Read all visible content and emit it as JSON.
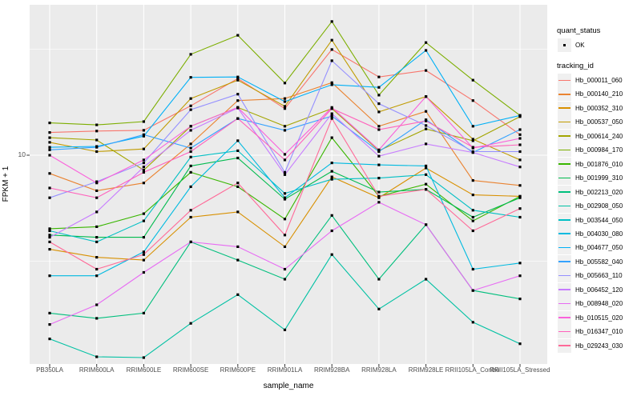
{
  "colors": {
    "panel_bg": "#EBEBEB",
    "grid": "#FFFFFF",
    "axis_text": "#4D4D4D",
    "tick_mark": "#333333",
    "marker": "#000000",
    "legend_key_bg": "#F0F0F0"
  },
  "y_axis": {
    "tick_label": "10"
  },
  "legend": {
    "quant_status_title": "quant_status",
    "quant_status_items": [
      {
        "label": "OK",
        "symbol": "black-point"
      }
    ],
    "tracking_id_title": "tracking_id"
  },
  "chart_data": {
    "type": "line",
    "title": "",
    "xlabel": "sample_name",
    "ylabel": "FPKM + 1",
    "yscale": "log10",
    "ylim": [
      1.03,
      51
    ],
    "ybreaks_major": [
      10
    ],
    "ybreaks_minor": [
      3.16,
      31.6
    ],
    "grid": "on",
    "legend_position": "right",
    "quant_status": "OK",
    "x_categories": [
      "PB350LA",
      "RRIM600LA",
      "RRIM600LE",
      "RRIM600SE",
      "RRIM600PE",
      "RRIM901LA",
      "RRIM928BA",
      "RRIM928LA",
      "RRIM928LE",
      "RRII105LA_Control",
      "RRII105LA_Stressed"
    ],
    "series": [
      {
        "name": "Hb_000011_060",
        "color": "#F8766D",
        "values": [
          12.8,
          13.0,
          13.1,
          17.1,
          23.0,
          16.6,
          31.5,
          23.4,
          25.1,
          18.1,
          12.5
        ]
      },
      {
        "name": "Hb_000140_210",
        "color": "#EA8331",
        "values": [
          8.2,
          6.8,
          7.4,
          11.3,
          18.1,
          18.5,
          22.0,
          13.7,
          16.1,
          7.6,
          7.2
        ]
      },
      {
        "name": "Hb_000352_310",
        "color": "#D89000",
        "values": [
          3.6,
          3.3,
          3.2,
          5.1,
          5.4,
          3.7,
          7.9,
          6.3,
          8.7,
          6.5,
          6.4
        ]
      },
      {
        "name": "Hb_000537_050",
        "color": "#C09B00",
        "values": [
          11.5,
          10.4,
          10.7,
          18.5,
          22.6,
          17.0,
          34.9,
          16.0,
          18.9,
          11.9,
          9.5
        ]
      },
      {
        "name": "Hb_000614_240",
        "color": "#A3A500",
        "values": [
          12.1,
          11.8,
          8.5,
          13.7,
          16.8,
          13.7,
          16.6,
          10.5,
          13.3,
          11.7,
          15.2
        ]
      },
      {
        "name": "Hb_000984_170",
        "color": "#7CAE00",
        "values": [
          14.2,
          13.9,
          14.4,
          29.9,
          36.8,
          21.9,
          42.7,
          19.2,
          34.0,
          22.6,
          15.4
        ]
      },
      {
        "name": "Hb_001876_010",
        "color": "#39B600",
        "values": [
          4.5,
          4.6,
          5.3,
          8.3,
          7.1,
          5.0,
          12.1,
          6.4,
          7.3,
          4.9,
          6.4
        ]
      },
      {
        "name": "Hb_001999_310",
        "color": "#00BB4E",
        "values": [
          4.2,
          4.1,
          4.1,
          8.9,
          9.7,
          6.2,
          8.4,
          6.7,
          6.9,
          5.1,
          6.3
        ]
      },
      {
        "name": "Hb_002213_020",
        "color": "#00BF7D",
        "values": [
          1.8,
          1.7,
          1.8,
          3.9,
          3.2,
          2.6,
          5.2,
          2.6,
          4.7,
          2.3,
          2.1
        ]
      },
      {
        "name": "Hb_002908_050",
        "color": "#00C1A3",
        "values": [
          1.36,
          1.12,
          1.11,
          1.61,
          2.2,
          1.5,
          3.4,
          1.88,
          2.6,
          1.63,
          1.29
        ]
      },
      {
        "name": "Hb_003544_050",
        "color": "#00BFC4",
        "values": [
          4.4,
          3.9,
          4.9,
          9.8,
          10.5,
          6.6,
          7.7,
          7.8,
          8.1,
          5.5,
          5.1
        ]
      },
      {
        "name": "Hb_004030_080",
        "color": "#00BAE0",
        "values": [
          2.7,
          2.7,
          3.5,
          7.1,
          11.7,
          6.3,
          9.2,
          9.0,
          8.9,
          2.9,
          3.1
        ]
      },
      {
        "name": "Hb_004677_050",
        "color": "#00B0F6",
        "values": [
          10.9,
          11.0,
          12.3,
          23.3,
          23.4,
          17.9,
          21.5,
          20.9,
          31.2,
          13.7,
          15.4
        ]
      },
      {
        "name": "Hb_005582_040",
        "color": "#35A2FF",
        "values": [
          10.6,
          10.9,
          12.5,
          10.8,
          14.9,
          13.1,
          15.3,
          10.4,
          14.7,
          10.3,
          13.2
        ]
      },
      {
        "name": "Hb_005663_110",
        "color": "#9590FF",
        "values": [
          6.3,
          7.5,
          9.2,
          16.4,
          19.4,
          8.3,
          27.9,
          17.5,
          13.8,
          10.4,
          10.4
        ]
      },
      {
        "name": "Hb_006452_120",
        "color": "#C77CFF",
        "values": [
          4.1,
          5.4,
          8.8,
          13.1,
          16.7,
          8.1,
          15.7,
          9.9,
          11.3,
          10.3,
          8.8
        ]
      },
      {
        "name": "Hb_008948_020",
        "color": "#E76BF3",
        "values": [
          1.59,
          1.97,
          2.8,
          3.9,
          3.7,
          2.9,
          4.4,
          6.0,
          4.7,
          2.3,
          2.7
        ]
      },
      {
        "name": "Hb_010515_020",
        "color": "#FA62DB",
        "values": [
          10.0,
          7.4,
          9.5,
          13.7,
          16.8,
          10.1,
          16.8,
          10.6,
          18.9,
          10.8,
          12.0
        ]
      },
      {
        "name": "Hb_016347_010",
        "color": "#FF62BC",
        "values": [
          7.0,
          6.3,
          8.3,
          10.4,
          14.9,
          9.5,
          16.6,
          13.2,
          14.5,
          10.9,
          11.2
        ]
      },
      {
        "name": "Hb_029243_030",
        "color": "#FF6A98",
        "values": [
          3.9,
          2.9,
          3.4,
          5.5,
          7.4,
          4.2,
          14.9,
          6.4,
          6.9,
          4.4,
          5.6
        ]
      }
    ]
  }
}
